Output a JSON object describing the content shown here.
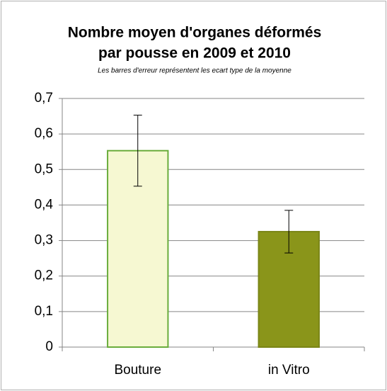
{
  "chart_data": {
    "type": "bar",
    "title": [
      "Nombre moyen d'organes déformés",
      "par pousse en 2009 et 2010"
    ],
    "subtitle": "Les barres d'erreur représentent les ecart type de la moyenne",
    "categories": [
      "Bouture",
      "in Vitro"
    ],
    "values": [
      0.553,
      0.325
    ],
    "errors": [
      0.1,
      0.06
    ],
    "colors": [
      "#f6f8d2",
      "#8a951a"
    ],
    "edge_colors": [
      "#6aad3c",
      "#7a8516"
    ],
    "ylim": [
      0,
      0.7
    ],
    "yticks": [
      0,
      {
        "value": 0.1,
        "label": "0,1"
      },
      {
        "value": 0.2,
        "label": "0,2"
      },
      {
        "value": 0.3,
        "label": "0,3"
      },
      {
        "value": 0.4,
        "label": "0,4"
      },
      {
        "value": 0.5,
        "label": "0,5"
      },
      {
        "value": 0.6,
        "label": "0,6"
      },
      {
        "value": 0.7,
        "label": "0,7"
      }
    ],
    "grid": true
  }
}
